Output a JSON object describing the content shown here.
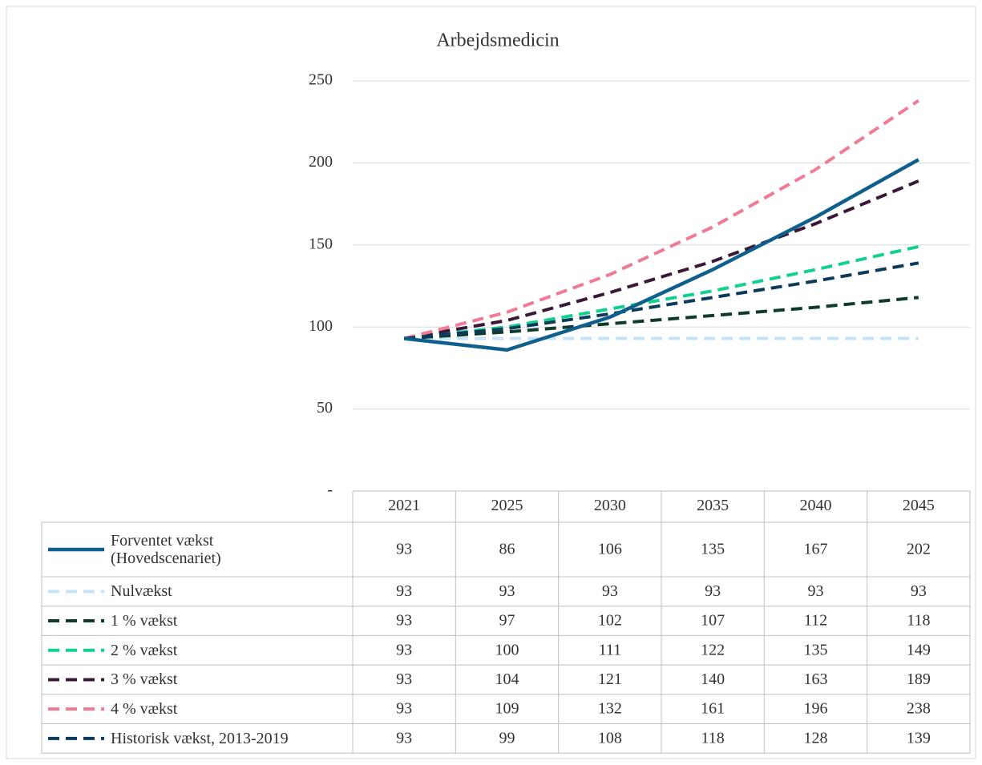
{
  "chart_data": {
    "type": "line",
    "title": "Arbejdsmedicin",
    "categories": [
      "2021",
      "2025",
      "2030",
      "2035",
      "2040",
      "2045"
    ],
    "ylim": [
      0,
      250
    ],
    "yticks": [
      {
        "value": 0,
        "label": "-"
      },
      50,
      100,
      150,
      200,
      250
    ],
    "grid": true,
    "series": [
      {
        "name": "Forventet vækst (Hovedscenariet)",
        "color": "#0f5f8c",
        "dashed": false,
        "values": [
          93,
          86,
          106,
          135,
          167,
          202
        ]
      },
      {
        "name": "Nulvækst",
        "color": "#c5e3f7",
        "dashed": true,
        "values": [
          93,
          93,
          93,
          93,
          93,
          93
        ]
      },
      {
        "name": "1 % vækst",
        "color": "#0e3b2e",
        "dashed": true,
        "values": [
          93,
          97,
          102,
          107,
          112,
          118
        ]
      },
      {
        "name": "2 % vækst",
        "color": "#12d18e",
        "dashed": true,
        "values": [
          93,
          100,
          111,
          122,
          135,
          149
        ]
      },
      {
        "name": "3 % vækst",
        "color": "#3a1838",
        "dashed": true,
        "values": [
          93,
          104,
          121,
          140,
          163,
          189
        ]
      },
      {
        "name": "4 % vækst",
        "color": "#f07b94",
        "dashed": true,
        "values": [
          93,
          109,
          132,
          161,
          196,
          238
        ]
      },
      {
        "name": "Historisk vækst, 2013-2019",
        "color": "#0b3a5a",
        "dashed": true,
        "values": [
          93,
          99,
          108,
          118,
          128,
          139
        ]
      }
    ]
  }
}
